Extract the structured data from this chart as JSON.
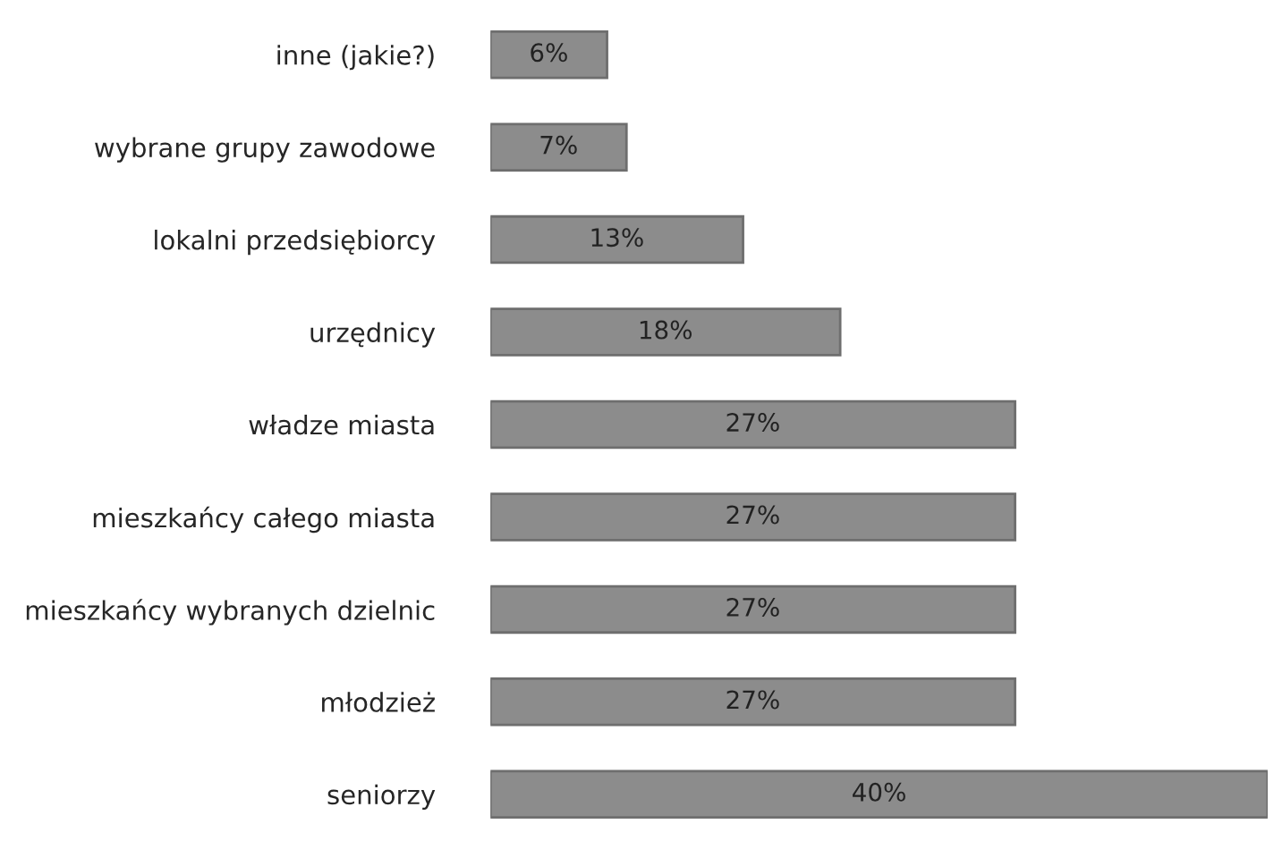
{
  "chart_data": {
    "type": "bar",
    "orientation": "horizontal",
    "categories": [
      "inne (jakie?)",
      "wybrane grupy zawodowe",
      "lokalni przedsiębiorcy",
      "urzędnicy",
      "władze miasta",
      "mieszkańcy całego miasta",
      "mieszkańcy wybranych dzielnic",
      "młodzież",
      "seniorzy"
    ],
    "values": [
      6,
      7,
      13,
      18,
      27,
      27,
      27,
      27,
      40
    ],
    "value_labels": [
      "6%",
      "7%",
      "13%",
      "18%",
      "27%",
      "27%",
      "27%",
      "27%",
      "40%"
    ],
    "color": "#8c8c8c",
    "grid": false,
    "legend": false
  }
}
